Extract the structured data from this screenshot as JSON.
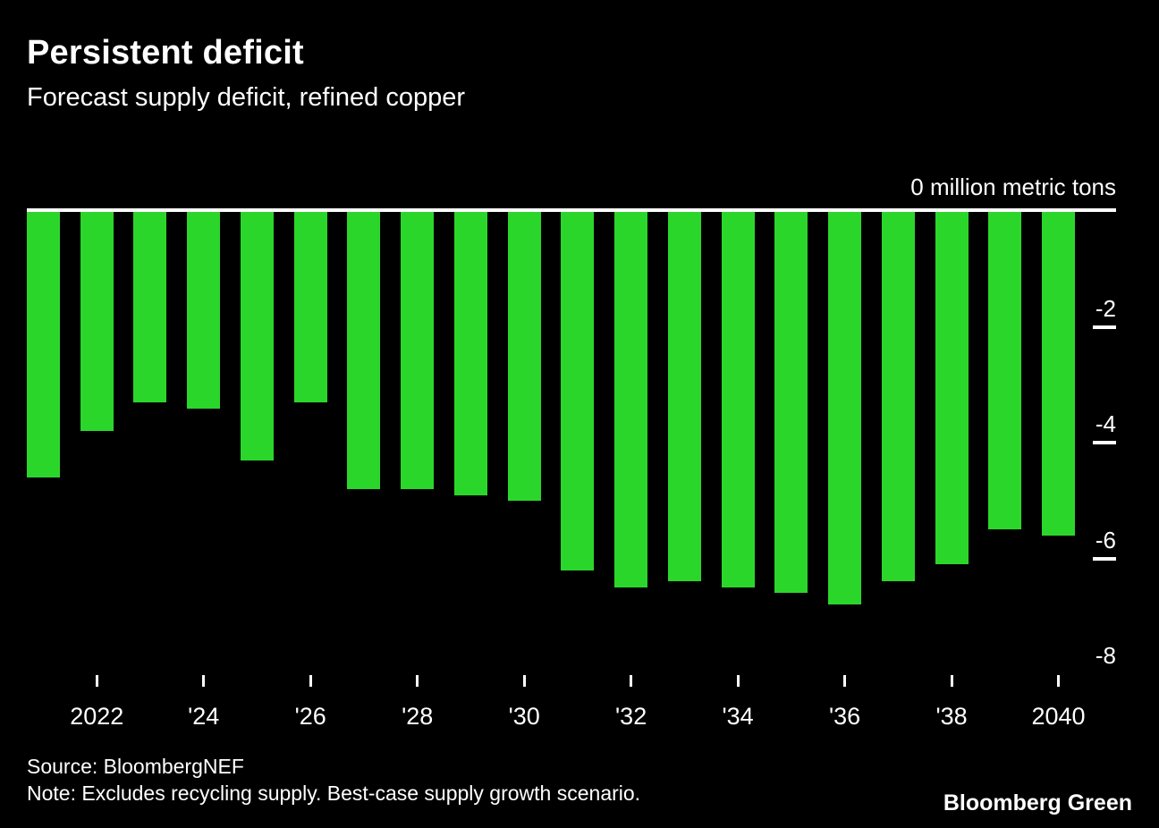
{
  "header": {
    "title": "Persistent deficit",
    "subtitle": "Forecast supply deficit, refined copper"
  },
  "chart_data": {
    "type": "bar",
    "title": "Persistent deficit",
    "subtitle": "Forecast supply deficit, refined copper",
    "unit_label": "0 million metric tons",
    "xlabel": "",
    "ylabel": "million metric tons",
    "ylim": [
      -8.6,
      0
    ],
    "grid": "off",
    "legend": "none",
    "bar_color": "#2bd62b",
    "background_color": "#000000",
    "years": [
      2021,
      2022,
      2023,
      2024,
      2025,
      2026,
      2027,
      2028,
      2029,
      2030,
      2031,
      2032,
      2033,
      2034,
      2035,
      2036,
      2037,
      2038,
      2039,
      2040
    ],
    "values": [
      -4.6,
      -3.8,
      -3.3,
      -3.4,
      -4.3,
      -3.3,
      -4.8,
      -4.8,
      -4.9,
      -5.0,
      -6.2,
      -6.5,
      -6.4,
      -6.5,
      -6.6,
      -6.8,
      -6.4,
      -6.1,
      -5.5,
      -5.6
    ],
    "x_tick_labels": [
      "2022",
      "'24",
      "'26",
      "'28",
      "'30",
      "'32",
      "'34",
      "'36",
      "'38",
      "2040"
    ],
    "x_tick_year_indices": [
      1,
      3,
      5,
      7,
      9,
      11,
      13,
      15,
      17,
      19
    ],
    "y_tick_labels": [
      "-2",
      "-4",
      "-6",
      "-8"
    ]
  },
  "footer": {
    "source": "Source: BloombergNEF",
    "note": "Note: Excludes recycling supply. Best-case supply growth scenario.",
    "brand": "Bloomberg Green"
  }
}
